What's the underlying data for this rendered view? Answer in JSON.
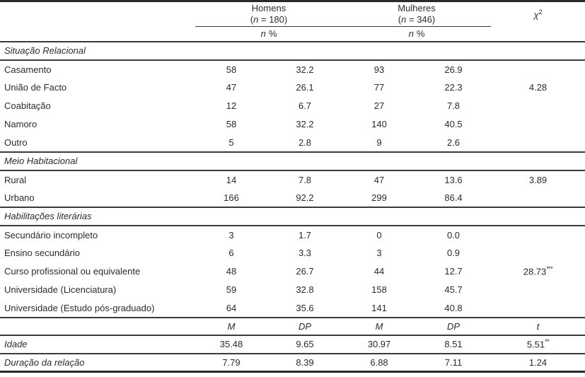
{
  "colors": {
    "text": "#2b2b30",
    "rule": "#3a3a3e",
    "background": "#ffffff"
  },
  "table": {
    "groups": [
      {
        "name": "Homens",
        "count_prefix": "(",
        "count_symbol": "n",
        "count_rest": " = 180)"
      },
      {
        "name": "Mulheres",
        "count_prefix": "(",
        "count_symbol": "n",
        "count_rest": " = 346)"
      }
    ],
    "chi": {
      "symbol": "χ",
      "sup": "2"
    },
    "subheader": {
      "n": "n",
      "pct": "%"
    },
    "sections": [
      {
        "title": "Situação Relacional",
        "rows": [
          {
            "label": "Casamento",
            "values": [
              "58",
              "32.2",
              "93",
              "26.9",
              ""
            ]
          },
          {
            "label": "União de Facto",
            "values": [
              "47",
              "26.1",
              "77",
              "22.3",
              "4.28"
            ]
          },
          {
            "label": "Coabitação",
            "values": [
              "12",
              "6.7",
              "27",
              "7.8",
              ""
            ]
          },
          {
            "label": "Namoro",
            "values": [
              "58",
              "32.2",
              "140",
              "40.5",
              ""
            ]
          },
          {
            "label": "Outro",
            "values": [
              "5",
              "2.8",
              "9",
              "2.6",
              ""
            ]
          }
        ]
      },
      {
        "title": "Meio Habitacional",
        "rows": [
          {
            "label": "Rural",
            "values": [
              "14",
              "7.8",
              "47",
              "13.6",
              "3.89"
            ]
          },
          {
            "label": "Urbano",
            "values": [
              "166",
              "92.2",
              "299",
              "86.4",
              ""
            ]
          }
        ]
      },
      {
        "title": "Habilitações literárias",
        "rows": [
          {
            "label": "Secundário incompleto",
            "values": [
              "3",
              "1.7",
              "0",
              "0.0",
              ""
            ]
          },
          {
            "label": "Ensino secundário",
            "values": [
              "6",
              "3.3",
              "3",
              "0.9",
              ""
            ]
          },
          {
            "label": "Curso profissional ou equivalente",
            "values": [
              "48",
              "26.7",
              "44",
              "12.7",
              "28.73***"
            ]
          },
          {
            "label": "Universidade (Licenciatura)",
            "values": [
              "59",
              "32.8",
              "158",
              "45.7",
              ""
            ]
          },
          {
            "label": "Universidade (Estudo pós-graduado)",
            "values": [
              "64",
              "35.6",
              "141",
              "40.8",
              ""
            ]
          }
        ]
      }
    ],
    "stats_header": [
      "M",
      "DP",
      "M",
      "DP",
      "t"
    ],
    "stats_rows": [
      {
        "label": "Idade",
        "values": [
          "35.48",
          "9.65",
          "30.97",
          "8.51",
          "5.51**"
        ]
      },
      {
        "label": "Duração da relação",
        "values": [
          "7.79",
          "8.39",
          "6.88",
          "7.11",
          "1.24"
        ]
      }
    ]
  }
}
